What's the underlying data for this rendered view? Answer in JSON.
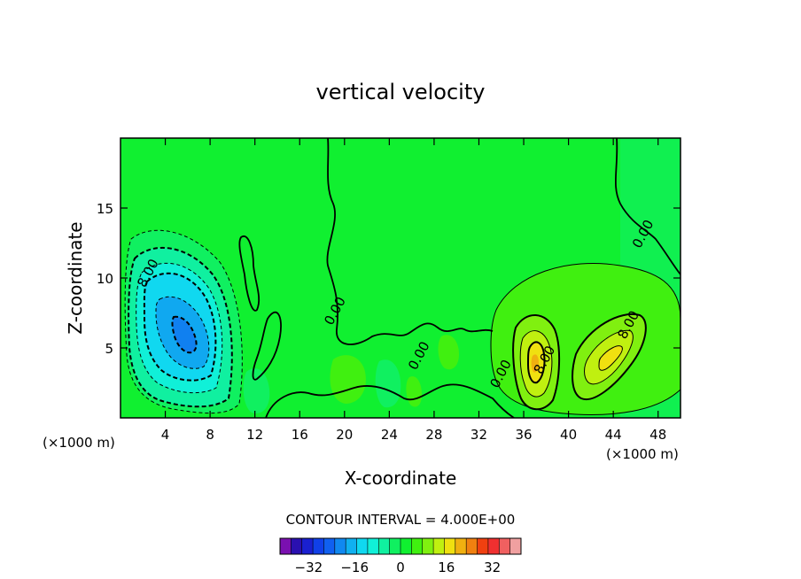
{
  "chart_data": {
    "type": "contour",
    "title": "vertical velocity",
    "xlabel": "X-coordinate",
    "ylabel": "Z-coordinate",
    "x_unit_left": "(×1000 m)",
    "x_unit_right": "(×1000 m)",
    "xlim": [
      0,
      50
    ],
    "ylim": [
      0,
      20
    ],
    "x_ticks": [
      4,
      8,
      12,
      16,
      20,
      24,
      28,
      32,
      36,
      40,
      44,
      48
    ],
    "y_ticks": [
      5,
      10,
      15
    ],
    "contour_interval_text": "CONTOUR INTERVAL = 4.000E+00",
    "contour_labels": [
      {
        "text": "8.00",
        "x": 2.8,
        "y": 10.2
      },
      {
        "text": "0.00",
        "x": 19.5,
        "y": 7.5
      },
      {
        "text": "0.00",
        "x": 27.0,
        "y": 4.3
      },
      {
        "text": "0.00",
        "x": 34.3,
        "y": 3.0
      },
      {
        "text": "8.00",
        "x": 38.2,
        "y": 4.0
      },
      {
        "text": "8.00",
        "x": 45.7,
        "y": 6.5
      },
      {
        "text": "0.00",
        "x": 47.0,
        "y": 13.0
      }
    ],
    "colorbar": {
      "levels": [
        -36,
        -32,
        -28,
        -24,
        -20,
        -16,
        -12,
        -8,
        -4,
        0,
        4,
        8,
        12,
        16,
        20,
        24,
        28,
        32,
        36
      ],
      "colors": [
        "#7a10b0",
        "#2a10b0",
        "#1a20d0",
        "#1040e8",
        "#1060f0",
        "#1088f0",
        "#10b0f0",
        "#10d8f0",
        "#10f0d8",
        "#10f0a0",
        "#10f060",
        "#10f030",
        "#40f010",
        "#80f010",
        "#c0f010",
        "#f0e010",
        "#f0b010",
        "#f08010",
        "#f04010",
        "#f03030",
        "#f06060",
        "#f0a0a0"
      ],
      "tick_values": [
        -32,
        -16,
        0,
        16,
        32
      ],
      "tick_labels": [
        "−32",
        "−16",
        "0",
        "16",
        "32"
      ]
    },
    "features": [
      {
        "kind": "downdraft",
        "x": 6.0,
        "y": 6.3,
        "min_value": -24
      },
      {
        "kind": "updraft",
        "x": 37.5,
        "y": 4.8,
        "max_value": 20
      },
      {
        "kind": "updraft",
        "x": 43.5,
        "y": 5.7,
        "max_value": 16
      }
    ]
  }
}
